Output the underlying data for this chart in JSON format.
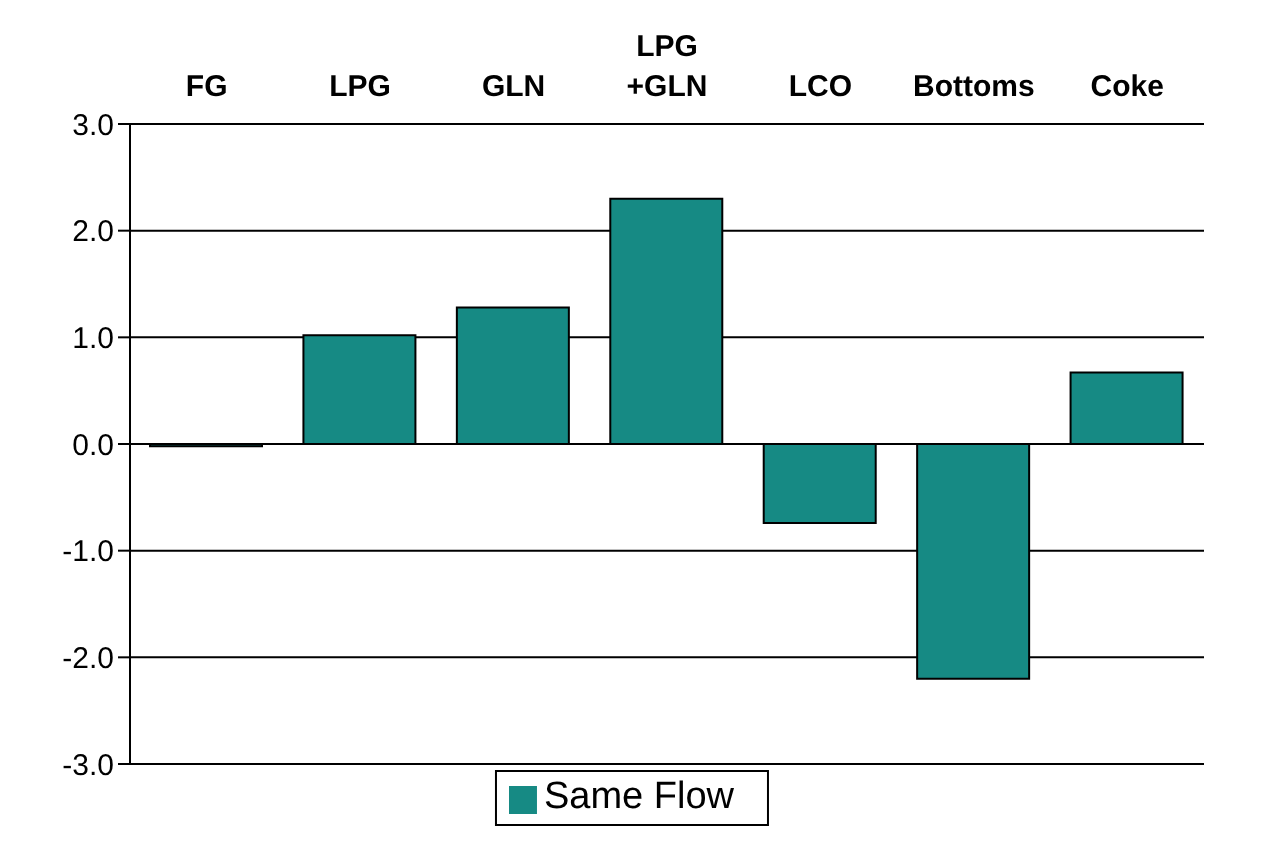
{
  "chart_data": {
    "type": "bar",
    "categories": [
      "FG",
      "LPG",
      "GLN",
      "LPG +GLN",
      "LCO",
      "Bottoms",
      "Coke"
    ],
    "series": [
      {
        "name": "Same Flow",
        "color": "#168a84",
        "values": [
          -0.02,
          1.02,
          1.28,
          2.3,
          -0.74,
          -2.2,
          0.67
        ]
      }
    ],
    "ylim": [
      -3,
      3
    ],
    "yticks": [
      {
        "value": -3,
        "label": "-3.0"
      },
      {
        "value": -2,
        "label": "-2.0"
      },
      {
        "value": -1,
        "label": "-1.0"
      },
      {
        "value": 0,
        "label": "0.0"
      },
      {
        "value": 1,
        "label": "1.0"
      },
      {
        "value": 2,
        "label": "2.0"
      },
      {
        "value": 3,
        "label": "3.0"
      }
    ],
    "grid": "y",
    "legend": "bottom"
  }
}
